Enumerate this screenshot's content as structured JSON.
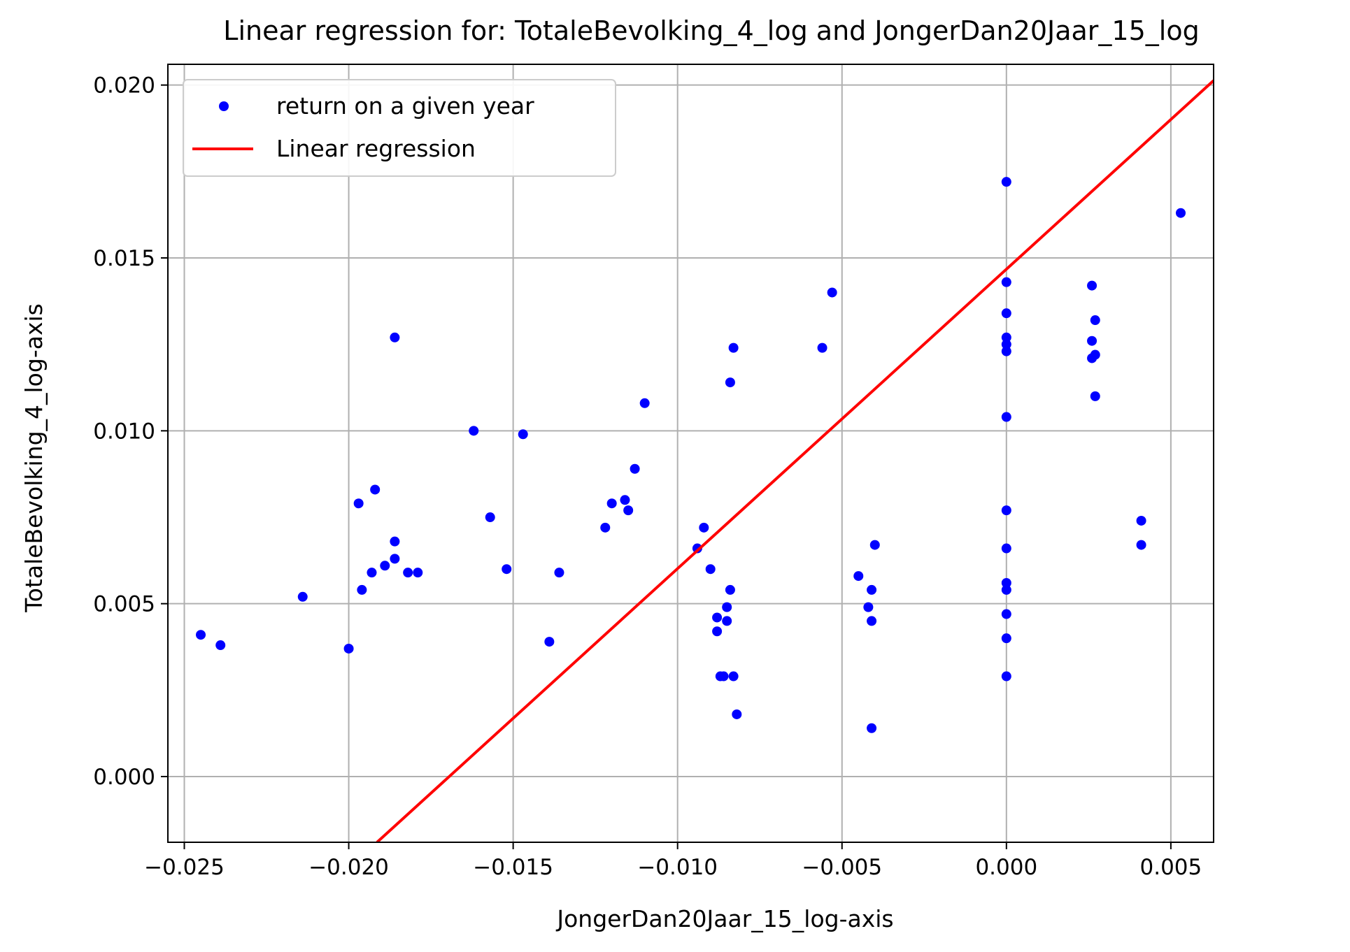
{
  "chart_data": {
    "type": "scatter",
    "title": "Linear regression for: TotaleBevolking_4_log and JongerDan20Jaar_15_log",
    "xlabel": "JongerDan20Jaar_15_log-axis",
    "ylabel": "TotaleBevolking_4_log-axis",
    "xlim": [
      -0.0255,
      0.0063
    ],
    "ylim": [
      -0.0019,
      0.0206
    ],
    "xticks": [
      -0.025,
      -0.02,
      -0.015,
      -0.01,
      -0.005,
      0.0,
      0.005
    ],
    "xtick_labels": [
      "−0.025",
      "−0.020",
      "−0.015",
      "−0.010",
      "−0.005",
      "0.000",
      "0.005"
    ],
    "yticks": [
      0.0,
      0.005,
      0.01,
      0.015,
      0.02
    ],
    "ytick_labels": [
      "0.000",
      "0.005",
      "0.010",
      "0.015",
      "0.020"
    ],
    "grid": true,
    "legend_position": "upper-left",
    "series": [
      {
        "name": "return on a given year",
        "kind": "scatter",
        "color": "#0000ff",
        "points": [
          [
            -0.0245,
            0.0041
          ],
          [
            -0.0239,
            0.0038
          ],
          [
            -0.0214,
            0.0052
          ],
          [
            -0.02,
            0.0037
          ],
          [
            -0.0197,
            0.0079
          ],
          [
            -0.0196,
            0.0054
          ],
          [
            -0.0193,
            0.0059
          ],
          [
            -0.0192,
            0.0083
          ],
          [
            -0.0189,
            0.0061
          ],
          [
            -0.0186,
            0.0127
          ],
          [
            -0.0186,
            0.0063
          ],
          [
            -0.0186,
            0.0068
          ],
          [
            -0.0182,
            0.0059
          ],
          [
            -0.0179,
            0.0059
          ],
          [
            -0.0162,
            0.01
          ],
          [
            -0.0157,
            0.0075
          ],
          [
            -0.0152,
            0.006
          ],
          [
            -0.0147,
            0.0099
          ],
          [
            -0.0139,
            0.0039
          ],
          [
            -0.0136,
            0.0059
          ],
          [
            -0.0122,
            0.0072
          ],
          [
            -0.012,
            0.0079
          ],
          [
            -0.0116,
            0.008
          ],
          [
            -0.0115,
            0.0077
          ],
          [
            -0.0113,
            0.0089
          ],
          [
            -0.011,
            0.0108
          ],
          [
            -0.0094,
            0.0066
          ],
          [
            -0.0092,
            0.0072
          ],
          [
            -0.009,
            0.006
          ],
          [
            -0.0088,
            0.0046
          ],
          [
            -0.0088,
            0.0042
          ],
          [
            -0.0087,
            0.0029
          ],
          [
            -0.0086,
            0.0029
          ],
          [
            -0.0085,
            0.0045
          ],
          [
            -0.0085,
            0.0049
          ],
          [
            -0.0084,
            0.0114
          ],
          [
            -0.0084,
            0.0054
          ],
          [
            -0.0083,
            0.0124
          ],
          [
            -0.0083,
            0.0029
          ],
          [
            -0.0082,
            0.0018
          ],
          [
            -0.0056,
            0.0124
          ],
          [
            -0.0053,
            0.014
          ],
          [
            -0.0045,
            0.0058
          ],
          [
            -0.0042,
            0.0049
          ],
          [
            -0.0041,
            0.0014
          ],
          [
            -0.0041,
            0.0045
          ],
          [
            -0.0041,
            0.0054
          ],
          [
            -0.004,
            0.0067
          ],
          [
            0.0,
            0.0172
          ],
          [
            0.0,
            0.0143
          ],
          [
            0.0,
            0.0134
          ],
          [
            0.0,
            0.0127
          ],
          [
            0.0,
            0.0125
          ],
          [
            0.0,
            0.0123
          ],
          [
            0.0,
            0.0104
          ],
          [
            0.0,
            0.0077
          ],
          [
            0.0,
            0.0066
          ],
          [
            0.0,
            0.0056
          ],
          [
            0.0,
            0.0054
          ],
          [
            0.0,
            0.0047
          ],
          [
            0.0,
            0.004
          ],
          [
            0.0,
            0.0029
          ],
          [
            0.0026,
            0.0142
          ],
          [
            0.0027,
            0.0132
          ],
          [
            0.0026,
            0.0126
          ],
          [
            0.0027,
            0.0122
          ],
          [
            0.0026,
            0.0121
          ],
          [
            0.0027,
            0.011
          ],
          [
            0.0041,
            0.0074
          ],
          [
            0.0041,
            0.0067
          ],
          [
            0.0053,
            0.0163
          ]
        ]
      },
      {
        "name": "Linear regression",
        "kind": "line",
        "color": "#ff0000",
        "points": [
          [
            -0.01914,
            -0.0019
          ],
          [
            0.0063,
            0.02013
          ]
        ]
      }
    ]
  }
}
